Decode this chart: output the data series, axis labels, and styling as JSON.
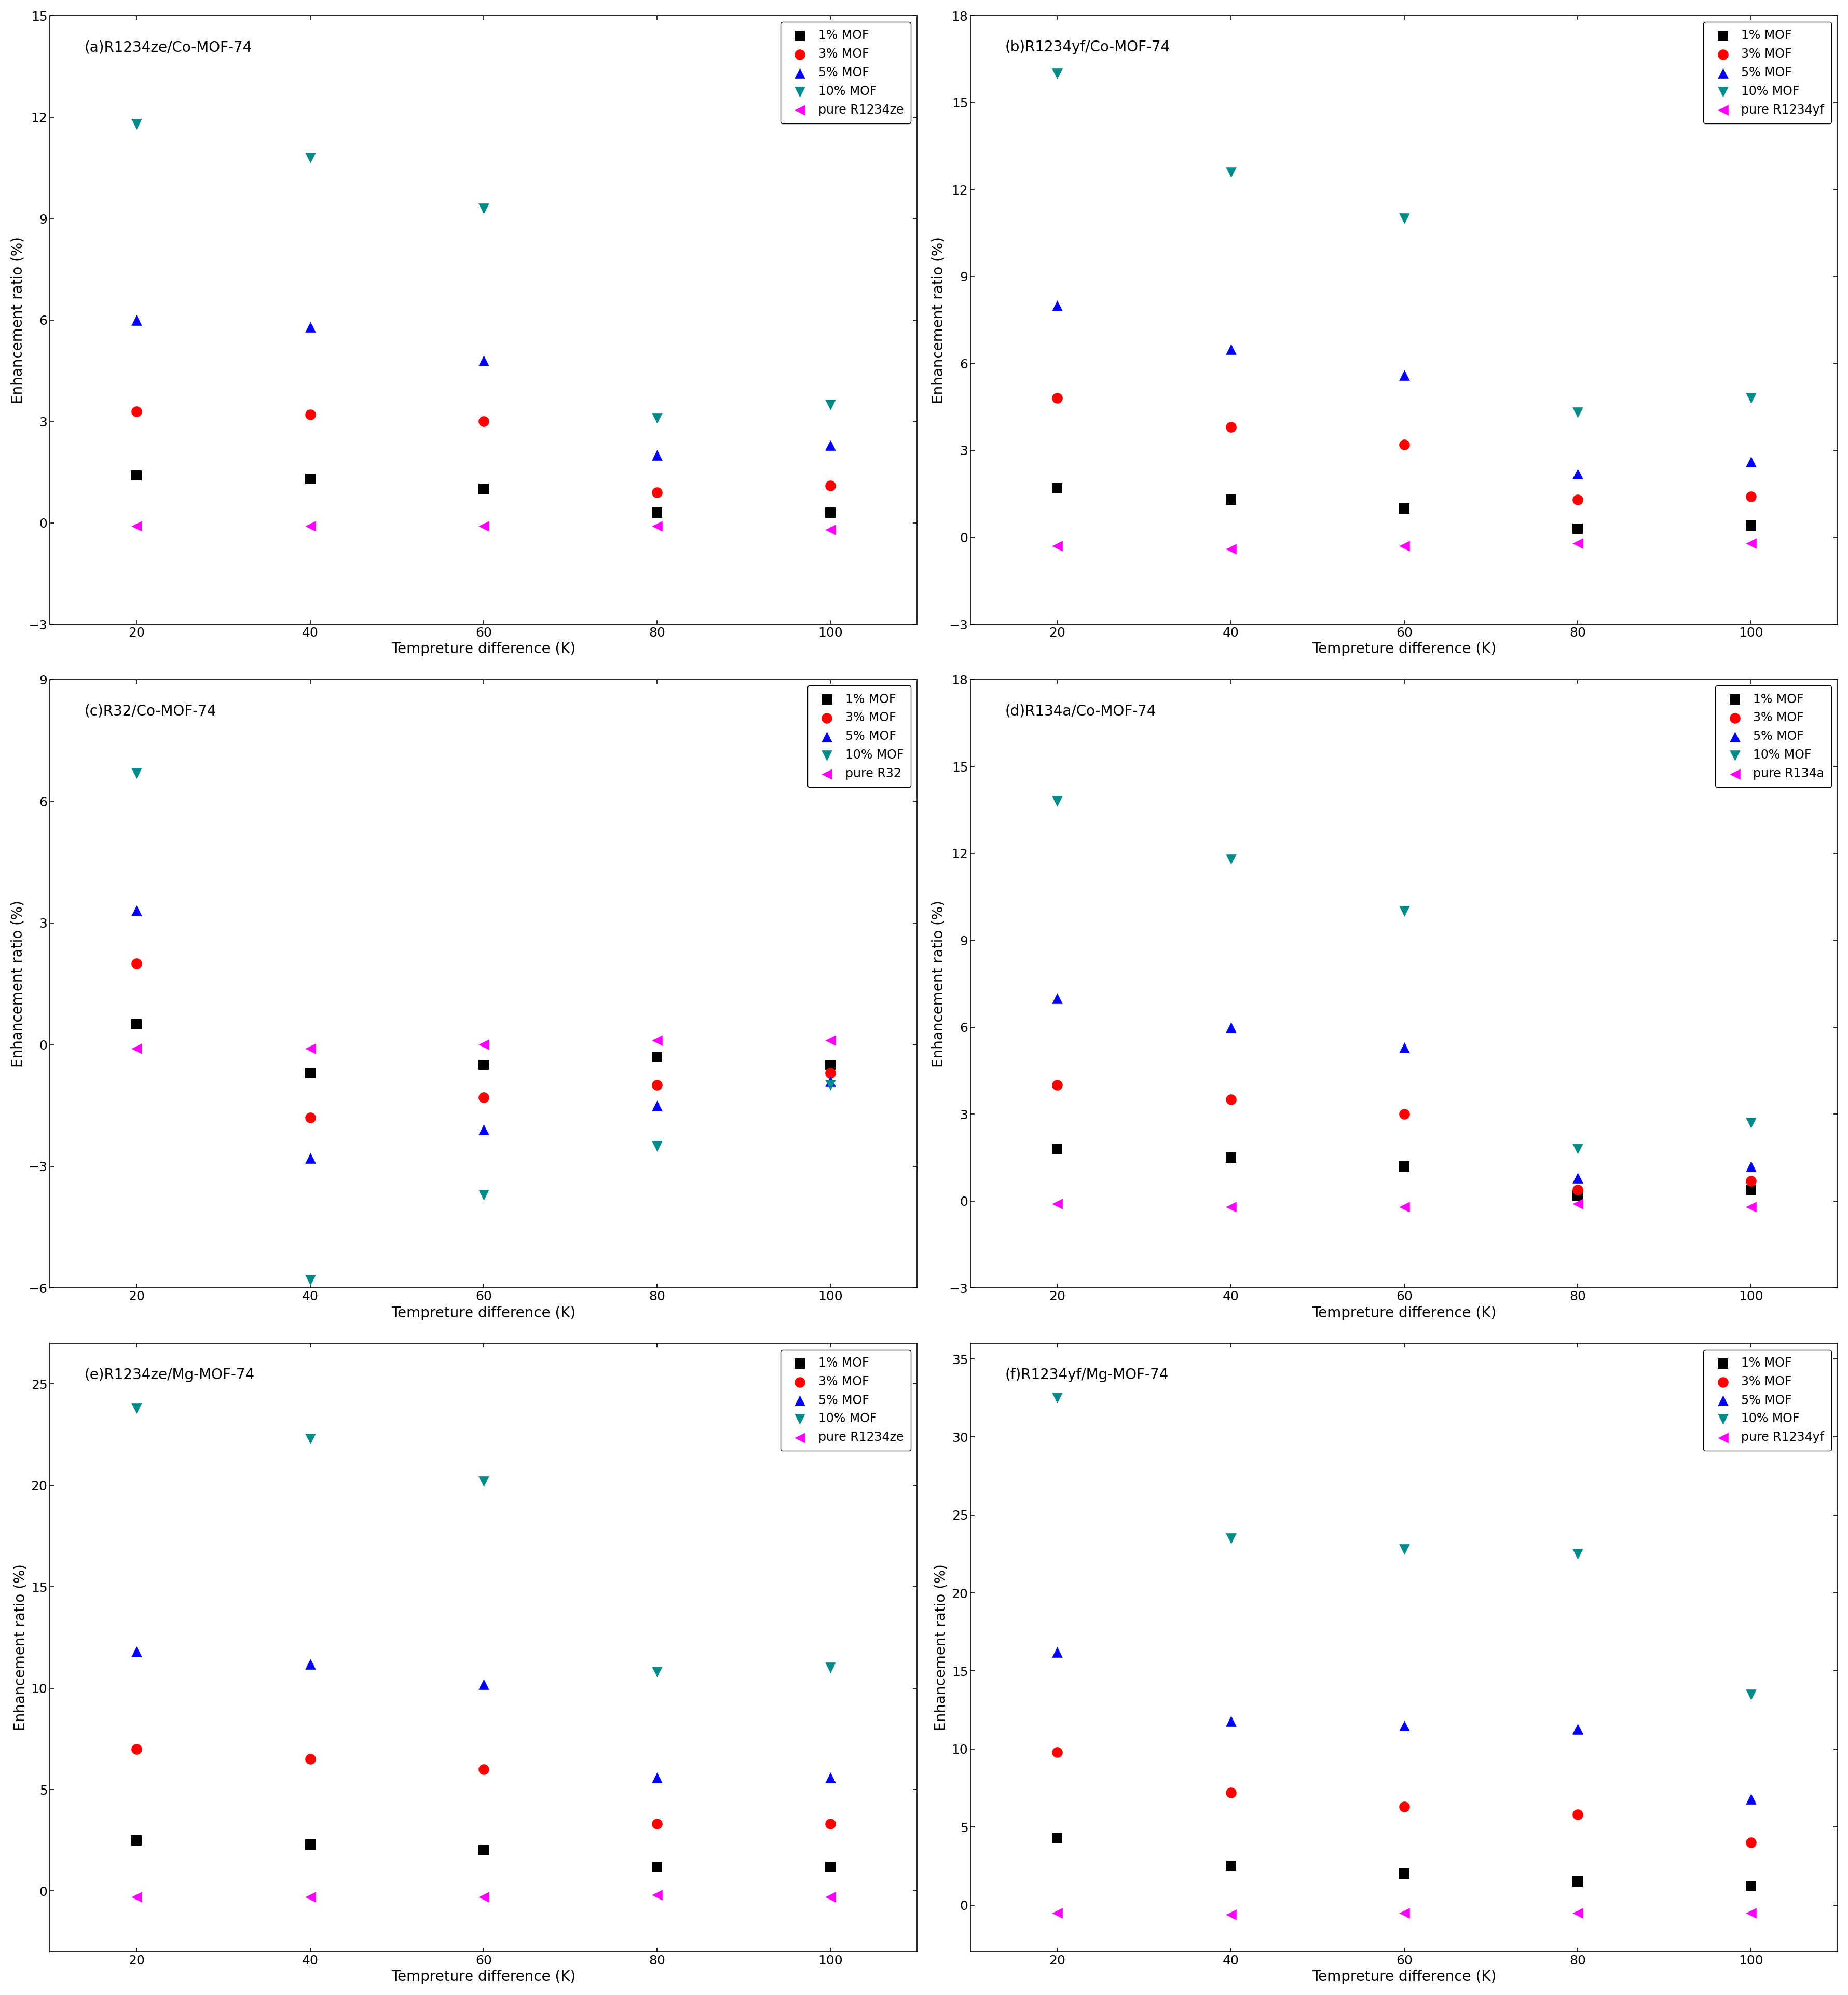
{
  "x": [
    20,
    40,
    60,
    80,
    100
  ],
  "subplots": [
    {
      "title": "(a)R1234ze/Co-MOF-74",
      "ylim": [
        -3,
        15
      ],
      "yticks": [
        -3,
        0,
        3,
        6,
        9,
        12,
        15
      ],
      "pure_label": "pure R1234ze",
      "series": {
        "1%": [
          1.4,
          1.3,
          1.0,
          0.3,
          0.3
        ],
        "3%": [
          3.3,
          3.2,
          3.0,
          0.9,
          1.1
        ],
        "5%": [
          6.0,
          5.8,
          4.8,
          2.0,
          2.3
        ],
        "10%": [
          11.8,
          10.8,
          9.3,
          3.1,
          3.5
        ],
        "pure": [
          -0.1,
          -0.1,
          -0.1,
          -0.1,
          -0.2
        ]
      }
    },
    {
      "title": "(b)R1234yf/Co-MOF-74",
      "ylim": [
        -3,
        18
      ],
      "yticks": [
        -3,
        0,
        3,
        6,
        9,
        12,
        15,
        18
      ],
      "pure_label": "pure R1234yf",
      "series": {
        "1%": [
          1.7,
          1.3,
          1.0,
          0.3,
          0.4
        ],
        "3%": [
          4.8,
          3.8,
          3.2,
          1.3,
          1.4
        ],
        "5%": [
          8.0,
          6.5,
          5.6,
          2.2,
          2.6
        ],
        "10%": [
          16.0,
          12.6,
          11.0,
          4.3,
          4.8
        ],
        "pure": [
          -0.3,
          -0.4,
          -0.3,
          -0.2,
          -0.2
        ]
      }
    },
    {
      "title": "(c)R32/Co-MOF-74",
      "ylim": [
        -6,
        9
      ],
      "yticks": [
        -6,
        -3,
        0,
        3,
        6,
        9
      ],
      "pure_label": "pure R32",
      "series": {
        "1%": [
          0.5,
          -0.7,
          -0.5,
          -0.3,
          -0.5
        ],
        "3%": [
          2.0,
          -1.8,
          -1.3,
          -1.0,
          -0.7
        ],
        "5%": [
          3.3,
          -2.8,
          -2.1,
          -1.5,
          -0.9
        ],
        "10%": [
          6.7,
          -5.8,
          -3.7,
          -2.5,
          -1.0
        ],
        "pure": [
          -0.1,
          -0.1,
          0.0,
          0.1,
          0.1
        ]
      }
    },
    {
      "title": "(d)R134a/Co-MOF-74",
      "ylim": [
        -3,
        18
      ],
      "yticks": [
        -3,
        0,
        3,
        6,
        9,
        12,
        15,
        18
      ],
      "pure_label": "pure R134a",
      "series": {
        "1%": [
          1.8,
          1.5,
          1.2,
          0.2,
          0.4
        ],
        "3%": [
          4.0,
          3.5,
          3.0,
          0.4,
          0.7
        ],
        "5%": [
          7.0,
          6.0,
          5.3,
          0.8,
          1.2
        ],
        "10%": [
          13.8,
          11.8,
          10.0,
          1.8,
          2.7
        ],
        "pure": [
          -0.1,
          -0.2,
          -0.2,
          -0.1,
          -0.2
        ]
      }
    },
    {
      "title": "(e)R1234ze/Mg-MOF-74",
      "ylim": [
        -3,
        27
      ],
      "yticks": [
        0,
        5,
        10,
        15,
        20,
        25
      ],
      "pure_label": "pure R1234ze",
      "series": {
        "1%": [
          2.5,
          2.3,
          2.0,
          1.2,
          1.2
        ],
        "3%": [
          7.0,
          6.5,
          6.0,
          3.3,
          3.3
        ],
        "5%": [
          11.8,
          11.2,
          10.2,
          5.6,
          5.6
        ],
        "10%": [
          23.8,
          22.3,
          20.2,
          10.8,
          11.0
        ],
        "pure": [
          -0.3,
          -0.3,
          -0.3,
          -0.2,
          -0.3
        ]
      }
    },
    {
      "title": "(f)R1234yf/Mg-MOF-74",
      "ylim": [
        -3,
        36
      ],
      "yticks": [
        0,
        5,
        10,
        15,
        20,
        25,
        30,
        35
      ],
      "pure_label": "pure R1234yf",
      "series": {
        "1%": [
          4.3,
          2.5,
          2.0,
          1.5,
          1.2
        ],
        "3%": [
          9.8,
          7.2,
          6.3,
          5.8,
          4.0
        ],
        "5%": [
          16.2,
          11.8,
          11.5,
          11.3,
          6.8
        ],
        "10%": [
          32.5,
          23.5,
          22.8,
          22.5,
          13.5
        ],
        "pure": [
          -0.5,
          -0.6,
          -0.5,
          -0.5,
          -0.5
        ]
      }
    }
  ],
  "series_styles": {
    "1%": {
      "color": "#000000",
      "marker": "s",
      "label": "1% MOF"
    },
    "3%": {
      "color": "#ff0000",
      "marker": "o",
      "label": "3% MOF"
    },
    "5%": {
      "color": "#0000ff",
      "marker": "^",
      "label": "5% MOF"
    },
    "10%": {
      "color": "#008B8B",
      "marker": "v",
      "label": "10% MOF"
    },
    "pure": {
      "color": "#ff00ff",
      "marker": "<",
      "label": "pure"
    }
  },
  "xlabel": "Tempreture difference (K)",
  "ylabel": "Enhancement ratio (%)",
  "marker_size": 220,
  "axis_fontsize": 20,
  "tick_fontsize": 18,
  "legend_fontsize": 17,
  "title_fontsize": 20
}
